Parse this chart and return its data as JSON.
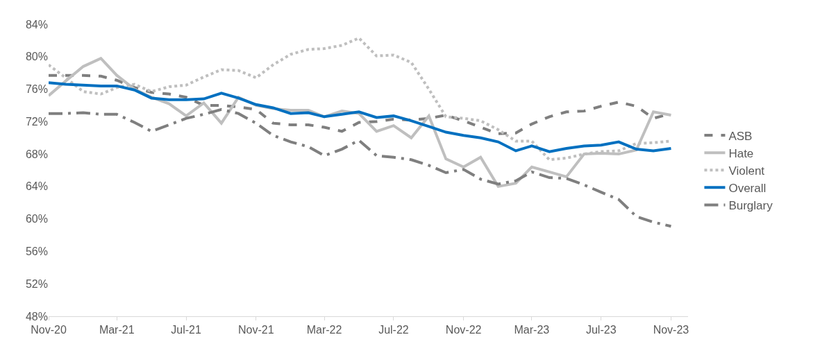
{
  "chart_data": {
    "type": "line",
    "x": [
      "2020-11",
      "2020-12",
      "2021-01",
      "2021-02",
      "2021-03",
      "2021-04",
      "2021-05",
      "2021-06",
      "2021-07",
      "2021-08",
      "2021-09",
      "2021-10",
      "2021-11",
      "2021-12",
      "2022-01",
      "2022-02",
      "2022-03",
      "2022-04",
      "2022-05",
      "2022-06",
      "2022-07",
      "2022-08",
      "2022-09",
      "2022-10",
      "2022-11",
      "2022-12",
      "2023-01",
      "2023-02",
      "2023-03",
      "2023-04",
      "2023-05",
      "2023-06",
      "2023-07",
      "2023-08",
      "2023-09",
      "2023-10",
      "2023-11"
    ],
    "series": [
      {
        "name": "ASB",
        "color": "#7f7f7f",
        "line_style": "dashed",
        "values": [
          77.7,
          77.7,
          77.7,
          77.6,
          77.1,
          76.2,
          75.6,
          75.4,
          75.0,
          74.0,
          74.0,
          73.8,
          73.5,
          71.8,
          71.6,
          71.6,
          71.3,
          70.8,
          71.9,
          72.0,
          72.3,
          72.2,
          72.4,
          72.8,
          72.1,
          71.3,
          70.5,
          70.6,
          71.7,
          72.6,
          73.2,
          73.3,
          73.9,
          74.4,
          73.9,
          72.4,
          73.0
        ]
      },
      {
        "name": "Hate",
        "color": "#bfbfbf",
        "line_style": "solid",
        "values": [
          75.2,
          77.0,
          78.8,
          79.8,
          77.7,
          76.0,
          75.0,
          74.2,
          72.7,
          74.3,
          71.8,
          75.0,
          74.0,
          73.6,
          73.4,
          73.4,
          72.6,
          73.3,
          73.0,
          70.8,
          71.5,
          70.0,
          72.7,
          67.4,
          66.4,
          67.6,
          64.0,
          64.4,
          66.4,
          65.8,
          65.2,
          68.0,
          68.1,
          68.0,
          68.5,
          73.2,
          72.8
        ]
      },
      {
        "name": "Violent",
        "color": "#bfbfbf",
        "line_style": "dotted",
        "values": [
          79.0,
          77.4,
          75.7,
          75.4,
          76.2,
          76.6,
          75.7,
          76.3,
          76.5,
          77.5,
          78.4,
          78.3,
          77.4,
          79.0,
          80.3,
          80.9,
          81.0,
          81.4,
          82.3,
          80.1,
          80.2,
          79.3,
          76.0,
          72.6,
          72.4,
          72.1,
          71.0,
          69.6,
          69.6,
          67.3,
          67.5,
          68.0,
          68.3,
          68.4,
          69.3,
          69.4,
          69.6
        ]
      },
      {
        "name": "Overall",
        "color": "#0070c0",
        "line_style": "solid",
        "values": [
          76.8,
          76.6,
          76.5,
          76.4,
          76.4,
          75.9,
          74.9,
          74.7,
          74.7,
          74.8,
          75.5,
          74.9,
          74.1,
          73.7,
          73.0,
          73.1,
          72.6,
          72.9,
          73.2,
          72.5,
          72.7,
          72.1,
          71.4,
          70.7,
          70.3,
          70.0,
          69.5,
          68.4,
          69.0,
          68.3,
          68.7,
          69.0,
          69.1,
          69.5,
          68.6,
          68.4,
          68.7
        ]
      },
      {
        "name": "Burglary",
        "color": "#7f7f7f",
        "line_style": "dashdot",
        "values": [
          73.0,
          73.0,
          73.1,
          72.9,
          72.9,
          71.9,
          70.8,
          71.6,
          72.4,
          72.9,
          73.5,
          73.0,
          71.8,
          70.3,
          69.5,
          68.9,
          67.8,
          68.6,
          69.7,
          67.8,
          67.6,
          67.3,
          66.6,
          65.7,
          66.1,
          64.9,
          64.3,
          64.7,
          65.8,
          65.1,
          65.0,
          64.2,
          63.3,
          62.4,
          60.3,
          59.6,
          59.1
        ]
      }
    ],
    "xlim": [
      "2020-11",
      "2023-12"
    ],
    "xticks": [
      {
        "value": "2020-11",
        "label": "Nov-20"
      },
      {
        "value": "2021-03",
        "label": "Mar-21"
      },
      {
        "value": "2021-07",
        "label": "Jul-21"
      },
      {
        "value": "2021-11",
        "label": "Nov-21"
      },
      {
        "value": "2022-03",
        "label": "Mar-22"
      },
      {
        "value": "2022-07",
        "label": "Jul-22"
      },
      {
        "value": "2022-11",
        "label": "Nov-22"
      },
      {
        "value": "2023-03",
        "label": "Mar-23"
      },
      {
        "value": "2023-07",
        "label": "Jul-23"
      },
      {
        "value": "2023-11",
        "label": "Nov-23"
      }
    ],
    "ylim": [
      48,
      84
    ],
    "yticks": [
      {
        "value": 48,
        "label": "48%"
      },
      {
        "value": 52,
        "label": "52%"
      },
      {
        "value": 56,
        "label": "56%"
      },
      {
        "value": 60,
        "label": "60%"
      },
      {
        "value": 64,
        "label": "64%"
      },
      {
        "value": 68,
        "label": "68%"
      },
      {
        "value": 72,
        "label": "72%"
      },
      {
        "value": 76,
        "label": "76%"
      },
      {
        "value": 80,
        "label": "80%"
      },
      {
        "value": 84,
        "label": "84%"
      }
    ],
    "grid": false,
    "legend": "right",
    "marker": "none"
  }
}
